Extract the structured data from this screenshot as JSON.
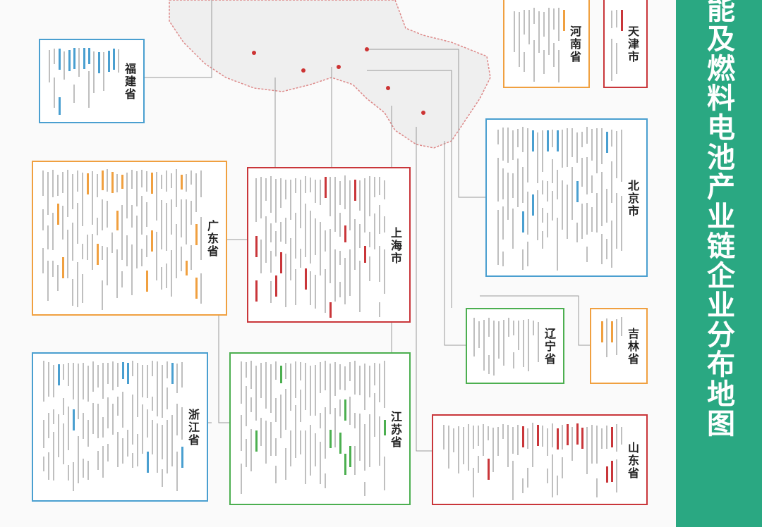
{
  "title": "能及燃料电池产业链企业分布地图",
  "provinces": [
    {
      "name": "天津市"
    },
    {
      "name": "河南省"
    },
    {
      "name": "福建省"
    },
    {
      "name": "北京市"
    },
    {
      "name": "广东省"
    },
    {
      "name": "上海市"
    },
    {
      "name": "吉林省"
    },
    {
      "name": "辽宁省"
    },
    {
      "name": "浙江省"
    },
    {
      "name": "江苏省"
    },
    {
      "name": "山东省"
    }
  ]
}
